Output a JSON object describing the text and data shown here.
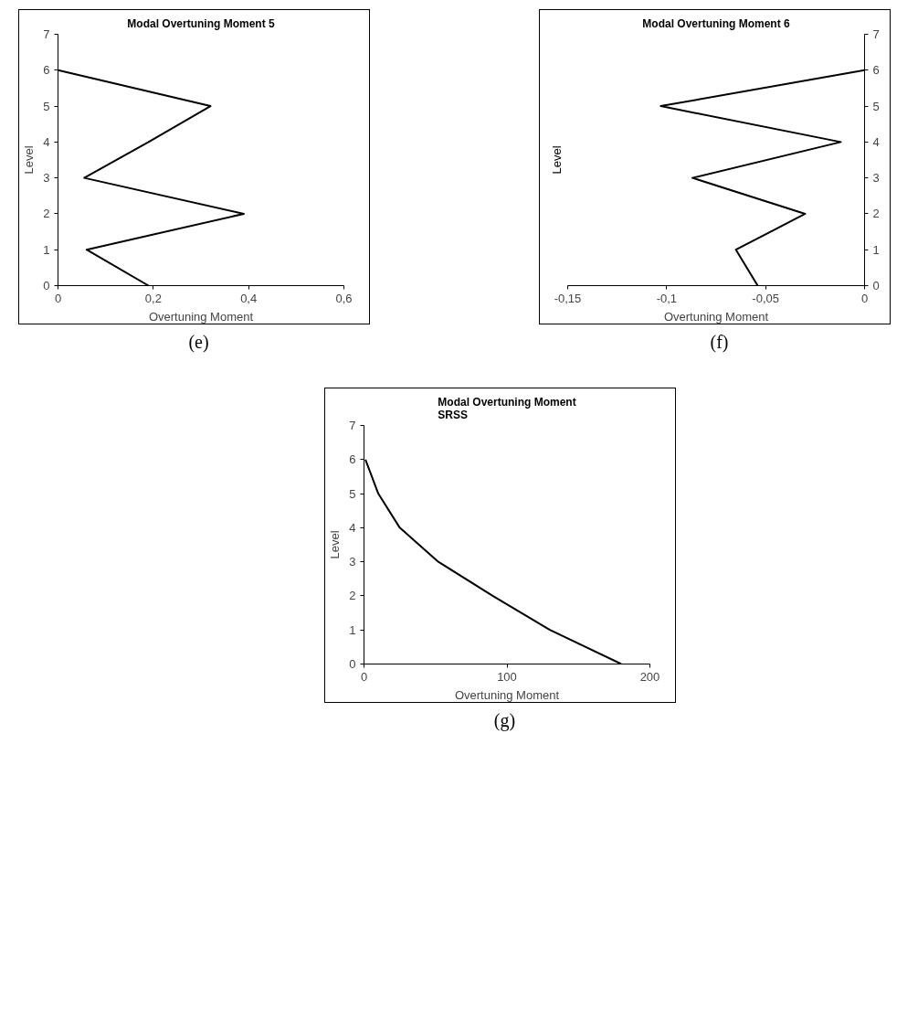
{
  "chart_data": [
    {
      "type": "line",
      "title": "Modal Overtuning Moment 5",
      "xlabel": "Overtuning Moment",
      "ylabel": "Level",
      "annotations": [
        "(e)"
      ],
      "x": [
        0.19,
        0.06,
        0.39,
        0.055,
        0.19,
        0.32,
        0
      ],
      "series": [
        {
          "color": "#000000",
          "values": [
            0,
            1,
            2,
            3,
            4,
            5,
            6
          ]
        }
      ],
      "xlim": [
        0,
        0.6
      ],
      "xticks": [
        0,
        {
          "value": 0.2,
          "label": "0,2"
        },
        {
          "value": 0.4,
          "label": "0,4"
        },
        {
          "value": 0.6,
          "label": "0,6"
        }
      ],
      "ylim": [
        0,
        7
      ],
      "yticks": [
        0,
        1,
        2,
        3,
        4,
        5,
        6,
        7
      ],
      "grid": false,
      "marker": "none",
      "line_style": "solid"
    },
    {
      "type": "line",
      "title": "Modal Overtuning Moment 6",
      "xlabel": "Overtuning Moment",
      "ylabel": "Level",
      "annotations": [
        "(f)"
      ],
      "x": [
        -0.054,
        -0.065,
        -0.03,
        -0.087,
        -0.012,
        -0.103,
        0
      ],
      "series": [
        {
          "color": "#000000",
          "values": [
            0,
            1,
            2,
            3,
            4,
            5,
            6
          ]
        }
      ],
      "xlim": [
        -0.15,
        0
      ],
      "xticks": [
        {
          "value": -0.15,
          "label": "-0,15"
        },
        {
          "value": -0.1,
          "label": "-0,1"
        },
        {
          "value": -0.05,
          "label": "-0,05"
        },
        0
      ],
      "ylim": [
        0,
        7
      ],
      "yticks": [
        0,
        1,
        2,
        3,
        4,
        5,
        6,
        7
      ],
      "grid": false,
      "marker": "none",
      "line_style": "solid"
    },
    {
      "type": "line",
      "title": "Modal Overtuning Moment\nSRSS",
      "xlabel": "Overtuning Moment",
      "ylabel": "Level",
      "annotations": [
        "(g)"
      ],
      "x": [
        180,
        130,
        90,
        52,
        25,
        10,
        1
      ],
      "series": [
        {
          "color": "#000000",
          "values": [
            0,
            1,
            2,
            3,
            4,
            5,
            6
          ]
        }
      ],
      "xlim": [
        0,
        200
      ],
      "xticks": [
        0,
        100,
        200
      ],
      "ylim": [
        0,
        7
      ],
      "yticks": [
        0,
        1,
        2,
        3,
        4,
        5,
        6,
        7
      ],
      "grid": false,
      "marker": "none",
      "line_style": "solid"
    }
  ]
}
